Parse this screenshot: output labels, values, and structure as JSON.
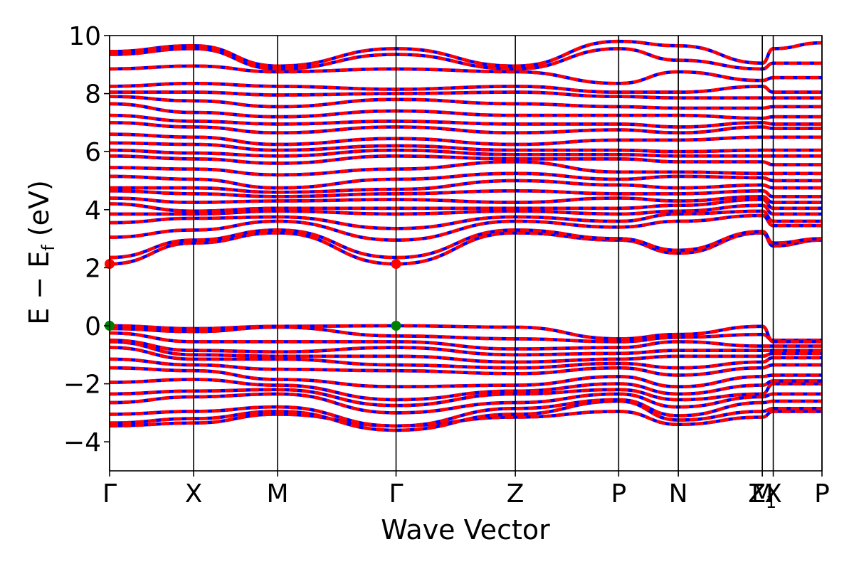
{
  "chart_data": {
    "type": "line",
    "title": "",
    "xlabel": "Wave Vector",
    "ylabel": "E − E",
    "ylabel_sub": "f",
    "ylabel_unit": " (eV)",
    "ylim": [
      -5,
      10
    ],
    "yticks": [
      -4,
      -2,
      0,
      2,
      4,
      6,
      8,
      10
    ],
    "ytick_labels": [
      "−4",
      "−2",
      "0",
      "2",
      "4",
      "6",
      "8",
      "10"
    ],
    "kpath": [
      {
        "label": "Γ",
        "sub": "",
        "x": 0.0
      },
      {
        "label": "X",
        "sub": "",
        "x": 1.0
      },
      {
        "label": "M",
        "sub": "",
        "x": 2.0
      },
      {
        "label": "Γ",
        "sub": "",
        "x": 3.41
      },
      {
        "label": "Z",
        "sub": "",
        "x": 4.83
      },
      {
        "label": "P",
        "sub": "",
        "x": 6.06
      },
      {
        "label": "N",
        "sub": "",
        "x": 6.77
      },
      {
        "label": "M",
        "sub": "",
        "x": 7.77
      },
      {
        "label": "Z",
        "sub": "1",
        "x": 7.77
      },
      {
        "label": "X",
        "sub": "",
        "x": 7.9
      },
      {
        "label": "P",
        "sub": "",
        "x": 8.48
      }
    ],
    "xlim": [
      0,
      8.48
    ],
    "series_colors": {
      "spin_up": "#ff0000",
      "spin_down": "#0000ff"
    },
    "band_extrema": [
      {
        "name": "CBM",
        "x": 0.0,
        "y": 2.13,
        "color": "#ff0000"
      },
      {
        "name": "CBM",
        "x": 3.41,
        "y": 2.13,
        "color": "#ff0000"
      },
      {
        "name": "VBM",
        "x": 0.0,
        "y": 0.0,
        "color": "#008000"
      },
      {
        "name": "VBM",
        "x": 3.41,
        "y": 0.0,
        "color": "#008000"
      }
    ],
    "bands": [
      [
        -3.45,
        -3.35,
        -3.05,
        -3.45,
        -3.15,
        -2.95,
        -3.4,
        -3.15,
        -2.95,
        -2.95
      ],
      [
        -3.35,
        -3.2,
        -2.95,
        -3.6,
        -3.05,
        -2.6,
        -3.25,
        -2.95,
        -2.85,
        -2.85
      ],
      [
        -3.05,
        -2.95,
        -2.8,
        -3.45,
        -2.85,
        -2.55,
        -3.1,
        -2.65,
        -2.6,
        -2.6
      ],
      [
        -2.65,
        -2.45,
        -2.35,
        -3.0,
        -2.65,
        -2.35,
        -2.8,
        -2.45,
        -2.35,
        -2.35
      ],
      [
        -2.35,
        -2.25,
        -2.2,
        -2.75,
        -2.35,
        -2.2,
        -2.55,
        -2.35,
        -2.0,
        -2.0
      ],
      [
        -1.95,
        -1.85,
        -2.05,
        -2.55,
        -2.25,
        -2.0,
        -2.35,
        -2.05,
        -1.9,
        -1.9
      ],
      [
        -1.45,
        -1.55,
        -1.85,
        -2.1,
        -2.05,
        -1.75,
        -2.1,
        -1.75,
        -1.7,
        -1.7
      ],
      [
        -1.15,
        -1.35,
        -1.5,
        -1.55,
        -1.65,
        -1.45,
        -1.7,
        -1.45,
        -1.35,
        -1.35
      ],
      [
        -0.75,
        -1.15,
        -1.15,
        -1.35,
        -1.45,
        -1.3,
        -1.45,
        -1.25,
        -1.1,
        -1.1
      ],
      [
        -0.55,
        -1.0,
        -1.05,
        -1.05,
        -1.25,
        -1.15,
        -1.05,
        -1.05,
        -0.95,
        -0.95
      ],
      [
        -0.5,
        -0.85,
        -0.9,
        -0.75,
        -1.0,
        -0.95,
        -0.85,
        -0.85,
        -0.85,
        -0.85
      ],
      [
        -0.25,
        -0.55,
        -0.55,
        -0.55,
        -0.8,
        -0.75,
        -0.55,
        -0.7,
        -0.7,
        -0.7
      ],
      [
        -0.1,
        -0.2,
        -0.05,
        -0.35,
        -0.45,
        -0.55,
        -0.4,
        -0.3,
        -0.5,
        -0.5
      ],
      [
        0.0,
        -0.1,
        -0.02,
        0.0,
        -0.05,
        -0.45,
        -0.3,
        -0.02,
        -0.55,
        -0.55
      ],
      [
        2.13,
        2.85,
        3.2,
        2.13,
        3.2,
        2.95,
        2.5,
        3.2,
        2.75,
        2.95
      ],
      [
        2.35,
        2.95,
        3.3,
        2.35,
        3.3,
        3.0,
        2.6,
        3.25,
        2.85,
        3.0
      ],
      [
        3.05,
        3.3,
        3.6,
        2.95,
        3.6,
        3.4,
        3.6,
        3.8,
        3.45,
        3.45
      ],
      [
        3.55,
        3.7,
        3.75,
        3.35,
        3.75,
        3.6,
        3.85,
        3.95,
        3.6,
        3.6
      ],
      [
        3.85,
        3.85,
        3.95,
        3.85,
        3.95,
        3.85,
        3.95,
        4.15,
        3.85,
        3.85
      ],
      [
        4.2,
        3.95,
        4.05,
        4.05,
        4.05,
        4.05,
        4.15,
        4.35,
        4.05,
        4.05
      ],
      [
        4.4,
        4.25,
        4.3,
        4.35,
        4.25,
        4.4,
        4.3,
        4.45,
        4.25,
        4.25
      ],
      [
        4.65,
        4.55,
        4.45,
        4.55,
        4.65,
        4.55,
        4.55,
        4.65,
        4.45,
        4.45
      ],
      [
        4.75,
        4.75,
        4.6,
        4.7,
        5.0,
        4.85,
        4.75,
        4.85,
        4.75,
        4.75
      ],
      [
        5.15,
        5.05,
        4.75,
        5.05,
        5.25,
        5.05,
        5.15,
        5.1,
        5.0,
        5.0
      ],
      [
        5.45,
        5.4,
        5.2,
        5.4,
        5.65,
        5.3,
        5.3,
        5.25,
        5.25,
        5.25
      ],
      [
        5.85,
        5.75,
        5.6,
        5.85,
        5.75,
        5.75,
        5.65,
        5.65,
        5.55,
        5.55
      ],
      [
        6.05,
        5.95,
        5.85,
        6.05,
        5.9,
        5.9,
        5.85,
        5.85,
        5.85,
        5.85
      ],
      [
        6.3,
        6.25,
        6.05,
        6.2,
        6.05,
        6.05,
        6.0,
        6.05,
        6.05,
        6.05
      ],
      [
        6.6,
        6.5,
        6.25,
        6.45,
        6.25,
        6.4,
        6.4,
        6.5,
        6.5,
        6.5
      ],
      [
        7.0,
        6.85,
        6.65,
        6.85,
        6.65,
        6.75,
        6.65,
        6.85,
        6.8,
        6.8
      ],
      [
        7.25,
        7.05,
        6.95,
        7.05,
        6.95,
        6.95,
        6.85,
        7.0,
        6.95,
        6.95
      ],
      [
        7.65,
        7.35,
        7.2,
        7.4,
        7.25,
        7.25,
        7.25,
        7.15,
        7.2,
        7.2
      ],
      [
        7.9,
        7.75,
        7.55,
        7.8,
        7.65,
        7.55,
        7.5,
        7.5,
        7.55,
        7.55
      ],
      [
        8.05,
        8.05,
        7.95,
        8.0,
        8.05,
        7.9,
        7.85,
        7.85,
        7.85,
        7.85
      ],
      [
        8.25,
        8.35,
        8.25,
        8.15,
        8.25,
        8.05,
        8.05,
        8.25,
        8.05,
        8.05
      ],
      [
        8.85,
        8.95,
        8.75,
        8.85,
        8.75,
        8.35,
        8.75,
        8.45,
        8.55,
        8.55
      ],
      [
        9.35,
        9.55,
        8.85,
        9.35,
        8.85,
        9.55,
        9.15,
        8.85,
        9.05,
        9.05
      ],
      [
        9.45,
        9.65,
        8.95,
        9.55,
        8.95,
        9.8,
        9.65,
        9.05,
        9.55,
        9.75
      ]
    ]
  }
}
